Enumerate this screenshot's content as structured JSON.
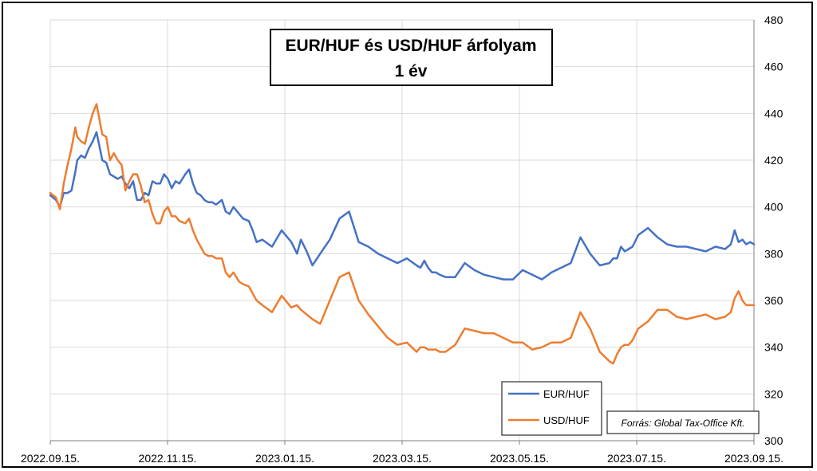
{
  "chart_data": {
    "type": "line",
    "title_lines": [
      "EUR/HUF és USD/HUF árfolyam",
      "1 év"
    ],
    "x_tick_labels": [
      "2022.09.15.",
      "2022.11.15.",
      "2023.01.15.",
      "2023.03.15.",
      "2023.05.15.",
      "2023.07.15.",
      "2023.09.15."
    ],
    "y_tick_labels": [
      "300",
      "320",
      "340",
      "360",
      "380",
      "400",
      "420",
      "440",
      "460",
      "480"
    ],
    "ylim": [
      300,
      480
    ],
    "x_range_days": [
      0,
      365
    ],
    "y_axis_side": "right",
    "grid": true,
    "legend_position": "bottom-right",
    "source_text": "Forrás: Global Tax-Office Kft.",
    "series": [
      {
        "name": "EUR/HUF",
        "color": "#4472C4",
        "x": [
          0,
          3,
          5,
          7,
          9,
          11,
          13,
          14,
          16,
          18,
          20,
          22,
          24,
          27,
          29,
          31,
          33,
          35,
          37,
          39,
          41,
          43,
          45,
          47,
          49,
          51,
          53,
          55,
          57,
          59,
          61,
          63,
          65,
          67,
          70,
          72,
          74,
          76,
          78,
          80,
          82,
          84,
          86,
          89,
          91,
          93,
          95,
          98,
          100,
          103,
          105,
          107,
          110,
          115,
          120,
          125,
          128,
          130,
          133,
          136,
          140,
          145,
          150,
          155,
          160,
          165,
          170,
          175,
          180,
          185,
          190,
          192,
          194,
          196,
          198,
          200,
          202,
          205,
          210,
          215,
          220,
          225,
          230,
          235,
          240,
          245,
          250,
          255,
          260,
          265,
          270,
          275,
          280,
          285,
          290,
          292,
          294,
          296,
          298,
          300,
          302,
          305,
          310,
          315,
          320,
          325,
          330,
          335,
          340,
          345,
          350,
          353,
          355,
          357,
          359,
          361,
          363,
          365
        ],
        "y": [
          405,
          403,
          400,
          406,
          406,
          407,
          415,
          420,
          422,
          421,
          425,
          428,
          432,
          420,
          419,
          414,
          413,
          412,
          413,
          410,
          408,
          411,
          403,
          403,
          406,
          405,
          411,
          410,
          410,
          414,
          412,
          408,
          411,
          410,
          414,
          416,
          410,
          406,
          405,
          403,
          402,
          402,
          401,
          403,
          398,
          397,
          400,
          397,
          395,
          394,
          390,
          385,
          386,
          383,
          390,
          385,
          380,
          386,
          381,
          375,
          380,
          386,
          395,
          398,
          385,
          383,
          380,
          378,
          376,
          378,
          375,
          374,
          377,
          374,
          372,
          372,
          371,
          370,
          370,
          376,
          373,
          371,
          370,
          369,
          369,
          373,
          371,
          369,
          372,
          374,
          376,
          387,
          380,
          375,
          376,
          378,
          378,
          383,
          381,
          382,
          383,
          388,
          391,
          387,
          384,
          383,
          383,
          382,
          381,
          383,
          382,
          384,
          390,
          385,
          386,
          384,
          385,
          384
        ]
      },
      {
        "name": "USD/HUF",
        "color": "#ED7D31",
        "x": [
          0,
          3,
          5,
          7,
          9,
          11,
          13,
          14,
          16,
          18,
          20,
          22,
          24,
          27,
          29,
          31,
          33,
          35,
          37,
          39,
          41,
          43,
          45,
          47,
          49,
          51,
          53,
          55,
          57,
          59,
          61,
          63,
          65,
          67,
          70,
          72,
          74,
          76,
          78,
          80,
          82,
          84,
          86,
          89,
          91,
          93,
          95,
          98,
          100,
          103,
          105,
          107,
          110,
          115,
          120,
          125,
          128,
          130,
          133,
          136,
          140,
          145,
          150,
          155,
          160,
          165,
          170,
          175,
          180,
          185,
          190,
          192,
          194,
          196,
          198,
          200,
          202,
          205,
          210,
          215,
          220,
          225,
          230,
          235,
          240,
          245,
          250,
          255,
          260,
          265,
          270,
          275,
          280,
          285,
          290,
          292,
          294,
          296,
          298,
          300,
          302,
          305,
          310,
          315,
          320,
          325,
          330,
          335,
          340,
          345,
          350,
          353,
          355,
          357,
          359,
          361,
          363,
          365
        ],
        "y": [
          406,
          404,
          399,
          410,
          418,
          425,
          434,
          430,
          428,
          427,
          434,
          440,
          444,
          431,
          430,
          420,
          423,
          420,
          418,
          407,
          411,
          414,
          414,
          409,
          402,
          403,
          397,
          393,
          393,
          398,
          400,
          396,
          396,
          394,
          393,
          395,
          390,
          386,
          383,
          380,
          379,
          379,
          378,
          378,
          372,
          370,
          372,
          368,
          367,
          366,
          363,
          360,
          358,
          355,
          362,
          357,
          358,
          356,
          354,
          352,
          350,
          360,
          370,
          372,
          360,
          354,
          349,
          344,
          341,
          342,
          338,
          340,
          340,
          339,
          339,
          339,
          338,
          338,
          341,
          348,
          347,
          346,
          346,
          344,
          342,
          342,
          339,
          340,
          342,
          342,
          344,
          355,
          348,
          338,
          334,
          333,
          337,
          340,
          341,
          341,
          343,
          348,
          351,
          356,
          356,
          353,
          352,
          353,
          354,
          352,
          353,
          355,
          361,
          364,
          360,
          358,
          358,
          358
        ]
      }
    ]
  }
}
